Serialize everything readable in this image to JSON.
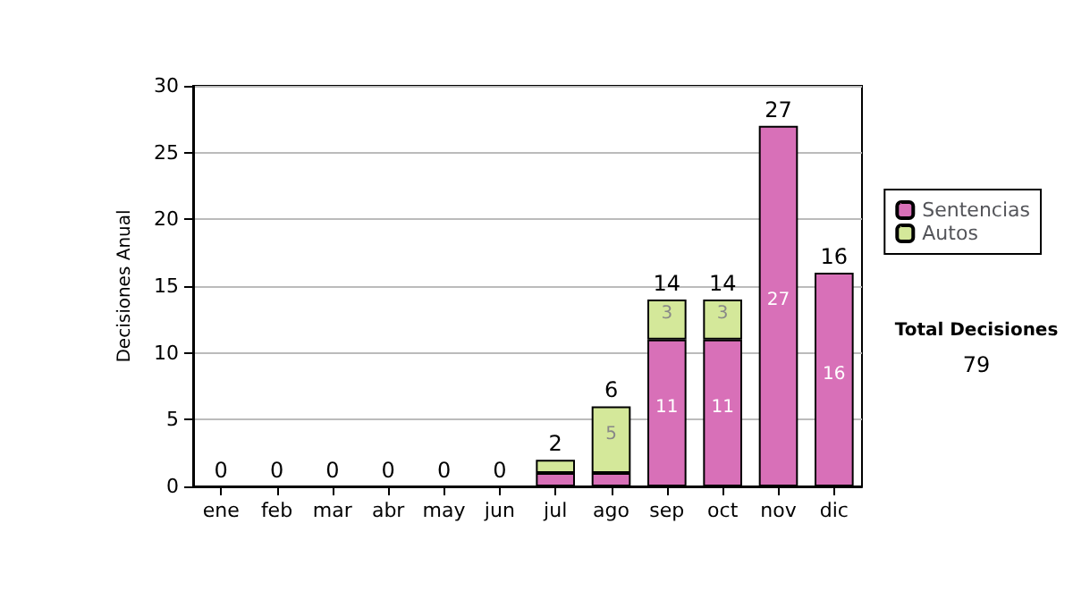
{
  "chart_data": {
    "type": "bar",
    "stacked": true,
    "ylabel": "Decisiones Anual",
    "categories": [
      "ene",
      "feb",
      "mar",
      "abr",
      "may",
      "jun",
      "jul",
      "ago",
      "sep",
      "oct",
      "nov",
      "dic"
    ],
    "series": [
      {
        "name": "Sentencias",
        "color": "#d870b8",
        "values": [
          0,
          0,
          0,
          0,
          0,
          0,
          1,
          1,
          11,
          11,
          27,
          16
        ],
        "value_labels": [
          null,
          null,
          null,
          null,
          null,
          null,
          null,
          null,
          "11",
          "11",
          "27",
          "16"
        ]
      },
      {
        "name": "Autos",
        "color": "#d4e89a",
        "values": [
          0,
          0,
          0,
          0,
          0,
          0,
          1,
          5,
          3,
          3,
          0,
          0
        ],
        "value_labels": [
          null,
          null,
          null,
          null,
          null,
          null,
          null,
          "5",
          "3",
          "3",
          null,
          null
        ]
      }
    ],
    "totals": [
      "0",
      "0",
      "0",
      "0",
      "0",
      "0",
      "2",
      "6",
      "14",
      "14",
      "27",
      "16"
    ],
    "ylim": [
      0,
      30
    ],
    "yticks": [
      0,
      5,
      10,
      15,
      20,
      25,
      30
    ],
    "grid": "y",
    "legend": "right",
    "annotations": [
      "Total Decisiones",
      "79"
    ]
  }
}
